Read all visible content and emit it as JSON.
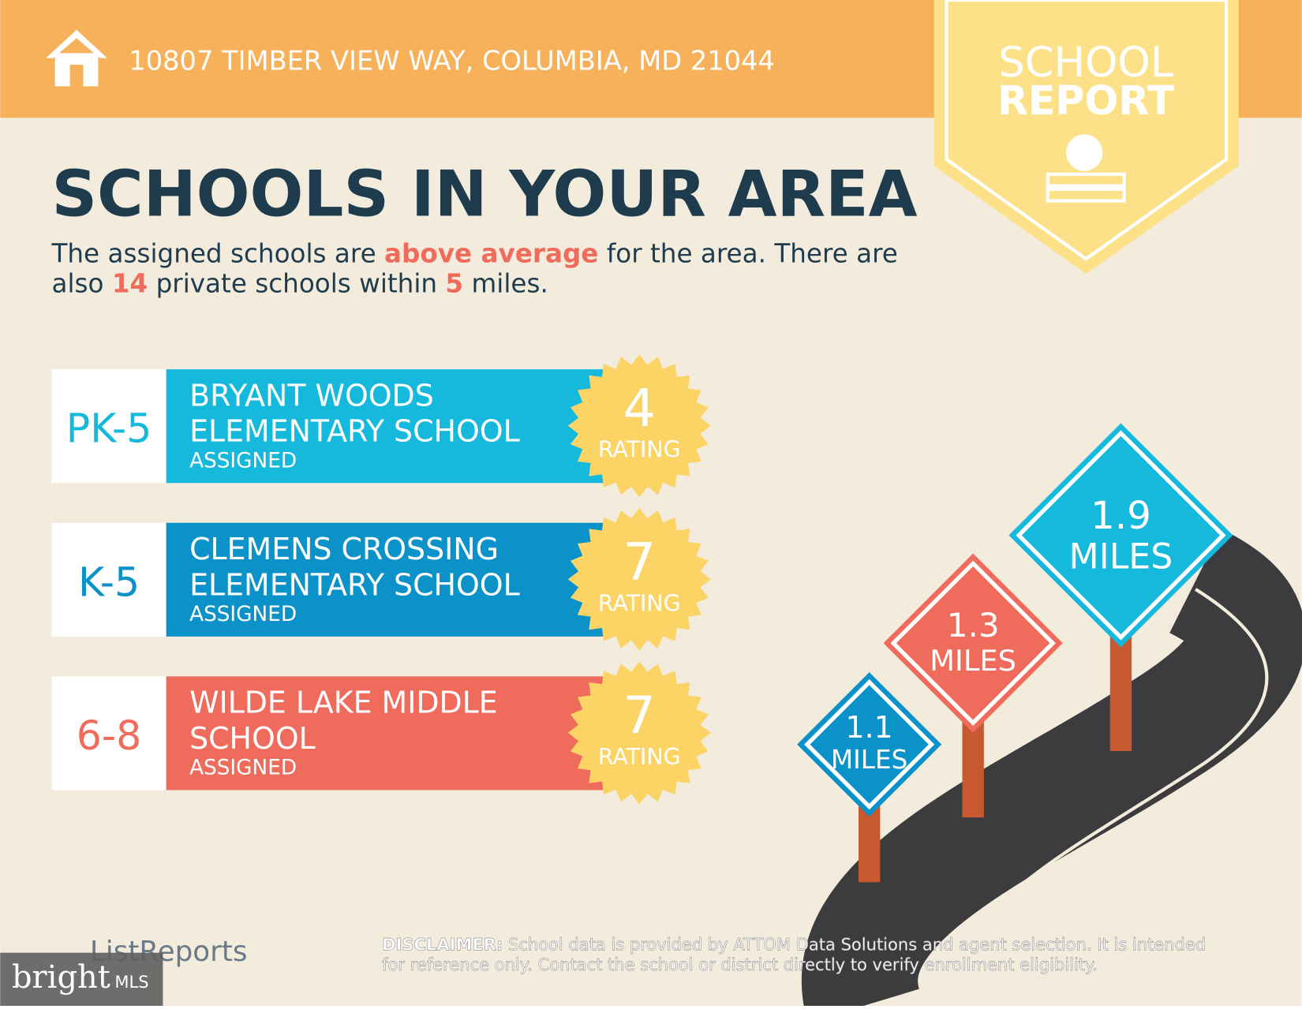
{
  "header": {
    "address": "10807 TIMBER VIEW WAY, COLUMBIA, MD 21044",
    "badge": [
      "SCHOOL",
      "REPORT"
    ]
  },
  "title": "SCHOOLS IN YOUR AREA",
  "summary": {
    "lines": [
      [
        "The assigned schools are ",
        "above average",
        " for the area. There are"
      ],
      [
        "also ",
        "14",
        " private schools within ",
        "5",
        " miles."
      ]
    ]
  },
  "schools": [
    {
      "grades": "PK-5",
      "name": [
        "BRYANT WOODS",
        "ELEMENTARY SCHOOL"
      ],
      "status": "ASSIGNED",
      "rating": "4",
      "rating_label": "RATING",
      "color": "#14b9dc"
    },
    {
      "grades": "K-5",
      "name": [
        "CLEMENS CROSSING",
        "ELEMENTARY SCHOOL"
      ],
      "status": "ASSIGNED",
      "rating": "7",
      "rating_label": "RATING",
      "color": "#0a92c9"
    },
    {
      "grades": "6-8",
      "name": [
        "WILDE LAKE MIDDLE",
        "SCHOOL"
      ],
      "status": "ASSIGNED",
      "rating": "7",
      "rating_label": "RATING",
      "color": "#ef6b5c"
    }
  ],
  "signs": [
    {
      "distance": "1.9",
      "unit": "MILES",
      "color": "#14b9dc"
    },
    {
      "distance": "1.3",
      "unit": "MILES",
      "color": "#ef6b5c"
    },
    {
      "distance": "1.1",
      "unit": "MILES",
      "color": "#0a92c9"
    }
  ],
  "footer": {
    "brand": "ListReports",
    "disclaimer_label": "DISCLAIMER:",
    "disclaimer": [
      " School data is provided by ATTOM Data Solutions and agent selection. It is intended",
      "for reference only. Contact the school or district directly to verify enrollment eligibility."
    ],
    "watermark": [
      "bright",
      "MLS"
    ]
  }
}
